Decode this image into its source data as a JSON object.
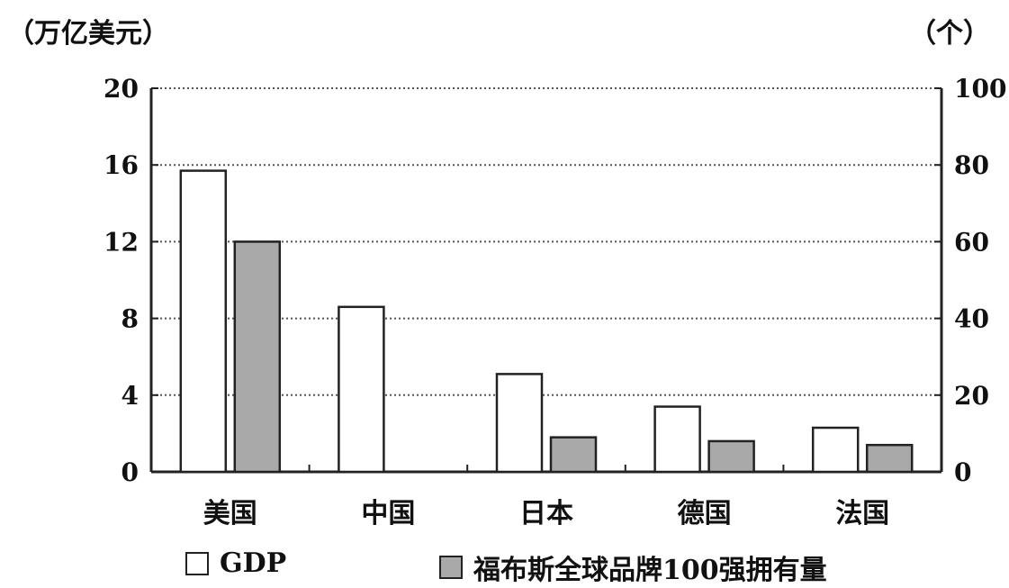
{
  "unit_left": "（万亿美元）",
  "unit_right": "（个）",
  "legend": {
    "gdp": "GDP",
    "brands": "福布斯全球品牌100强拥有量"
  },
  "colors": {
    "gdp_fill": "#ffffff",
    "brands_fill": "#a9a9a9",
    "stroke": "#222222",
    "grid": "#555555"
  },
  "chart_data": {
    "type": "bar",
    "categories": [
      "美国",
      "中国",
      "日本",
      "德国",
      "法国"
    ],
    "series": [
      {
        "name": "GDP",
        "axis": "left",
        "values": [
          15.7,
          8.6,
          5.1,
          3.4,
          2.3
        ]
      },
      {
        "name": "福布斯全球品牌100强拥有量",
        "axis": "right",
        "values": [
          60,
          0,
          9,
          8,
          7
        ]
      }
    ],
    "left_axis": {
      "min": 0,
      "max": 20,
      "ticks": [
        "0",
        "4",
        "8",
        "12",
        "16",
        "20"
      ]
    },
    "right_axis": {
      "min": 0,
      "max": 100,
      "ticks": [
        "0",
        "20",
        "40",
        "60",
        "80",
        "100"
      ]
    },
    "grid": "dotted horizontal",
    "legend_position": "bottom"
  }
}
